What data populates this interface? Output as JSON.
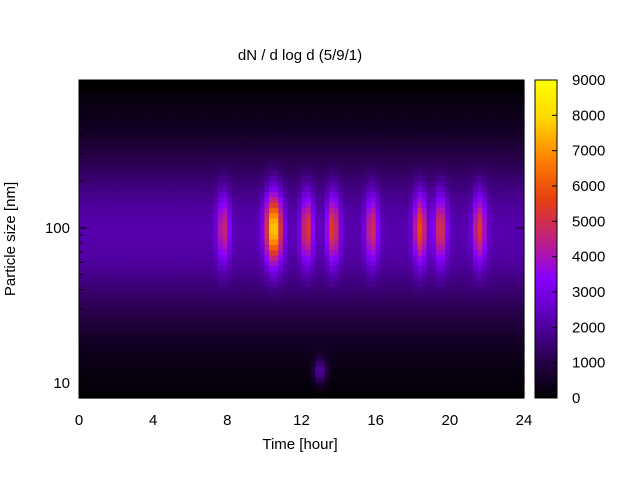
{
  "chart_data": {
    "type": "heatmap",
    "title": "dN / d log d (5/9/1)",
    "xlabel": "Time [hour]",
    "ylabel": "Particle size [nm]",
    "xlim": [
      0,
      24
    ],
    "x_ticks": [
      "0",
      "4",
      "8",
      "12",
      "16",
      "20",
      "24"
    ],
    "y_scale": "log",
    "ylim_nm": [
      8,
      900
    ],
    "y_ticks": [
      {
        "value": 10,
        "label": "10"
      },
      {
        "value": 100,
        "label": "100"
      }
    ],
    "colorbar": {
      "min": 0,
      "max": 9000,
      "ticks": [
        "0",
        "1000",
        "2000",
        "3000",
        "4000",
        "5000",
        "6000",
        "7000",
        "8000",
        "9000"
      ],
      "palette": [
        "#000000",
        "#2a0050",
        "#5a00b4",
        "#8800ff",
        "#c02080",
        "#e64010",
        "#ff8000",
        "#ffd500",
        "#ffff00"
      ]
    },
    "grid": false,
    "background_level": {
      "baseline_at_100nm": 2000,
      "note_bands": "levels in dN/dlogd units"
    },
    "peaks": [
      {
        "time": 10.5,
        "size_nm": 100,
        "value": 7500
      },
      {
        "time": 12.3,
        "size_nm": 100,
        "value": 4800
      },
      {
        "time": 13.7,
        "size_nm": 100,
        "value": 5000
      },
      {
        "time": 15.8,
        "size_nm": 100,
        "value": 4500
      },
      {
        "time": 18.4,
        "size_nm": 100,
        "value": 5300
      },
      {
        "time": 19.5,
        "size_nm": 100,
        "value": 4700
      },
      {
        "time": 21.6,
        "size_nm": 100,
        "value": 4800
      },
      {
        "time": 7.8,
        "size_nm": 100,
        "value": 4200
      },
      {
        "time": 13.0,
        "size_nm": 12,
        "value": 3500
      }
    ]
  }
}
